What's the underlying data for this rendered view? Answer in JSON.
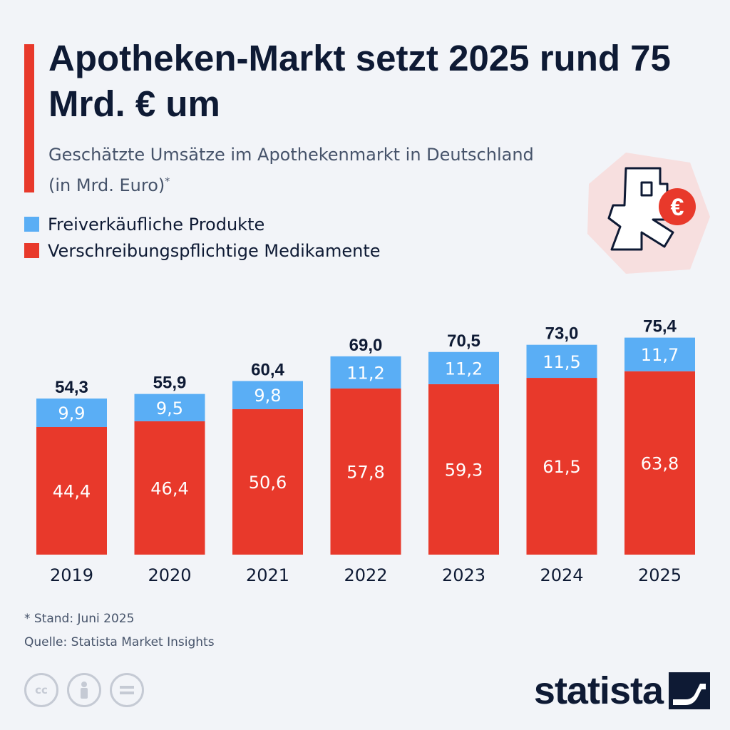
{
  "header": {
    "title": "Apotheken-Markt setzt 2025 rund 75 Mrd. € um",
    "subtitle": "Geschätzte Umsätze im Apothekenmarkt in Deutschland (in Mrd. Euro)",
    "subtitle_mark": "*"
  },
  "legend": {
    "items": [
      {
        "label": "Freiverkäufliche Produkte",
        "color": "#5aaef5"
      },
      {
        "label": "Verschreibungspflichtige Medikamente",
        "color": "#e8392b"
      }
    ]
  },
  "badge": {
    "icon": "pharmacy-euro-icon",
    "symbol": "€"
  },
  "chart_data": {
    "type": "bar",
    "stacked": true,
    "categories": [
      "2019",
      "2020",
      "2021",
      "2022",
      "2023",
      "2024",
      "2025"
    ],
    "series": [
      {
        "name": "Verschreibungspflichtige Medikamente",
        "color": "#e8392b",
        "values": [
          "44,4",
          "46,4",
          "50,6",
          "57,8",
          "59,3",
          "61,5",
          "63,8"
        ]
      },
      {
        "name": "Freiverkäufliche Produkte",
        "color": "#5aaef5",
        "values": [
          "9,9",
          "9,5",
          "9,8",
          "11,2",
          "11,2",
          "11,5",
          "11,7"
        ]
      }
    ],
    "totals": [
      "54,3",
      "55,9",
      "60,4",
      "69,0",
      "70,5",
      "73,0",
      "75,4"
    ],
    "ylim": [
      0,
      75.4
    ],
    "grid": false,
    "legend_position": "top-left"
  },
  "footer": {
    "note": "* Stand: Juni 2025",
    "source": "Quelle: Statista Market Insights",
    "license_icons": [
      "cc-icon",
      "by-person-icon",
      "nd-equal-icon"
    ],
    "logo": "statista"
  }
}
